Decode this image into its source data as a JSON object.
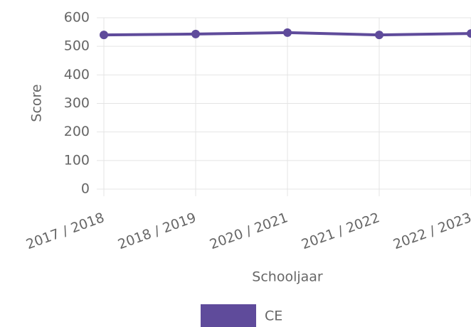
{
  "chart_data": {
    "type": "line",
    "categories": [
      "2017 / 2018",
      "2018 / 2019",
      "2020 / 2021",
      "2021 / 2022",
      "2022 / 2023"
    ],
    "series": [
      {
        "name": "CE",
        "color": "#5f4b9b",
        "values": [
          540,
          543,
          548,
          540,
          545
        ]
      }
    ],
    "ylim": [
      0,
      600
    ],
    "yticks": [
      0,
      100,
      200,
      300,
      400,
      500,
      600
    ],
    "xlabel": "Schooljaar",
    "ylabel": "Score",
    "grid": true,
    "legend": "bottom"
  }
}
